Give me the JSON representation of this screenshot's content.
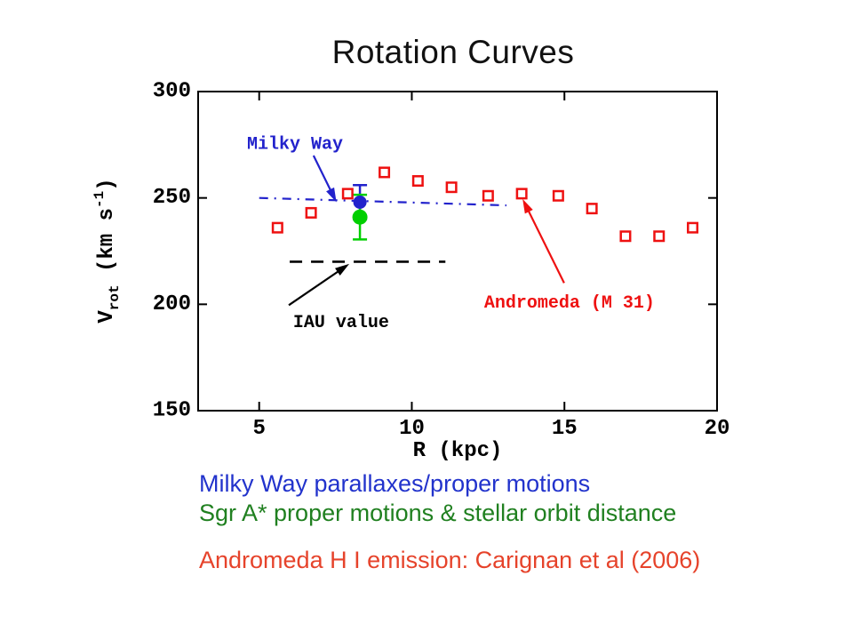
{
  "chart_data": {
    "type": "scatter",
    "title": "Rotation Curves",
    "xlabel": "R (kpc)",
    "ylabel": "Vrot (km s-1)",
    "ylabel_parts": {
      "base": "V",
      "sub": "rot",
      "unit_pre": " (km s",
      "sup": "-1",
      "unit_post": ")"
    },
    "xlim": [
      3,
      20
    ],
    "ylim": [
      150,
      300
    ],
    "xticks": [
      5,
      10,
      15,
      20
    ],
    "yticks": [
      150,
      200,
      250,
      300
    ],
    "grid": false,
    "legend_position": "none",
    "series": [
      {
        "name": "Andromeda (M 31)",
        "marker": "open-square",
        "color": "#ee1111",
        "size": 10.5,
        "x": [
          5.6,
          6.7,
          7.9,
          9.1,
          10.2,
          11.3,
          12.5,
          13.6,
          14.8,
          15.9,
          17.0,
          18.1,
          19.2
        ],
        "y": [
          236,
          243,
          252,
          262,
          258,
          255,
          251,
          252,
          251,
          245,
          232,
          232,
          236
        ]
      },
      {
        "name": "Milky Way",
        "marker": "filled-circle",
        "color": "#2222cc",
        "size": 7.5,
        "x": [
          8.3
        ],
        "y": [
          248
        ],
        "yerr": [
          8
        ]
      },
      {
        "name": "Sgr A*",
        "marker": "filled-circle",
        "color": "#00cf00",
        "size": 8.5,
        "x": [
          8.3
        ],
        "y": [
          241
        ],
        "yerr": [
          10.5
        ]
      }
    ],
    "lines": [
      {
        "name": "milky-way-fit",
        "style": "dash-dot",
        "color": "#2222cc",
        "points": [
          [
            5.0,
            250
          ],
          [
            13.1,
            246.5
          ]
        ]
      },
      {
        "name": "iau-value",
        "style": "dashed",
        "color": "#000000",
        "points": [
          [
            6.0,
            220
          ],
          [
            11.1,
            220
          ]
        ]
      }
    ],
    "annotations": [
      {
        "name": "milky-way",
        "text": "Milky Way",
        "color": "#2222cc",
        "x": 4.6,
        "y": 278.3,
        "arrow": {
          "x1": 6.78,
          "y1": 269.9,
          "x2": 7.53,
          "y2": 248.0
        }
      },
      {
        "name": "iau-value",
        "text": "IAU value",
        "color": "#000000",
        "x": 6.11,
        "y": 194.7,
        "arrow": {
          "x1": 5.97,
          "y1": 199.6,
          "x2": 7.95,
          "y2": 219.0
        }
      },
      {
        "name": "andromeda",
        "text": "Andromeda (M 31)",
        "color": "#ee1111",
        "x": 12.37,
        "y": 203.9,
        "arrow": {
          "x1": 14.99,
          "y1": 210.0,
          "x2": 13.63,
          "y2": 249.5
        }
      }
    ]
  },
  "captions": [
    {
      "text": "Milky Way parallaxes/proper motions",
      "color": "#2233cc"
    },
    {
      "text": "Sgr A* proper motions & stellar orbit distance",
      "color": "#208020"
    },
    {
      "text": "Andromeda H I emission: Carignan et al (2006)",
      "color": "#e6432b"
    }
  ]
}
